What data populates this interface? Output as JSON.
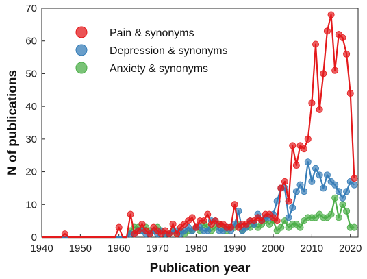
{
  "chart_data": {
    "type": "line",
    "xlabel": "Publication year",
    "ylabel": "N of publications",
    "xlim": [
      1940,
      2022
    ],
    "ylim": [
      0,
      70
    ],
    "xticks": [
      1940,
      1950,
      1960,
      1970,
      1980,
      1990,
      2000,
      2010,
      2020
    ],
    "yticks": [
      0,
      10,
      20,
      30,
      40,
      50,
      60,
      70
    ],
    "grid": false,
    "legend_position": "top-left",
    "x": [
      1940,
      1941,
      1942,
      1943,
      1944,
      1945,
      1946,
      1947,
      1948,
      1949,
      1950,
      1951,
      1952,
      1953,
      1954,
      1955,
      1956,
      1957,
      1958,
      1959,
      1960,
      1961,
      1962,
      1963,
      1964,
      1965,
      1966,
      1967,
      1968,
      1969,
      1970,
      1971,
      1972,
      1973,
      1974,
      1975,
      1976,
      1977,
      1978,
      1979,
      1980,
      1981,
      1982,
      1983,
      1984,
      1985,
      1986,
      1987,
      1988,
      1989,
      1990,
      1991,
      1992,
      1993,
      1994,
      1995,
      1996,
      1997,
      1998,
      1999,
      2000,
      2001,
      2002,
      2003,
      2004,
      2005,
      2006,
      2007,
      2008,
      2009,
      2010,
      2011,
      2012,
      2013,
      2014,
      2015,
      2016,
      2017,
      2018,
      2019,
      2020,
      2021
    ],
    "series": [
      {
        "name": "Pain & synonyms",
        "color": "#e41a1c",
        "values": [
          0,
          0,
          0,
          0,
          0,
          0,
          1,
          0,
          0,
          0,
          0,
          0,
          0,
          0,
          0,
          0,
          0,
          0,
          0,
          0,
          3,
          0,
          0,
          7,
          1,
          2,
          4,
          2,
          1,
          3,
          2,
          1,
          2,
          1,
          4,
          1,
          3,
          4,
          5,
          6,
          3,
          5,
          5,
          7,
          4,
          5,
          4,
          4,
          3,
          3,
          10,
          3,
          4,
          4,
          5,
          5,
          6,
          5,
          7,
          7,
          6,
          5,
          15,
          17,
          11,
          28,
          22,
          28,
          27,
          30,
          41,
          59,
          39,
          50,
          63,
          68,
          51,
          62,
          61,
          56,
          44,
          18
        ]
      },
      {
        "name": "Depression & synonyms",
        "color": "#377eb8",
        "values": [
          0,
          0,
          0,
          0,
          0,
          0,
          0,
          0,
          0,
          0,
          0,
          0,
          0,
          0,
          0,
          0,
          0,
          0,
          0,
          0,
          0,
          0,
          0,
          1,
          1,
          2,
          2,
          1,
          1,
          2,
          1,
          2,
          1,
          1,
          2,
          2,
          1,
          2,
          3,
          2,
          3,
          3,
          2,
          2,
          5,
          5,
          2,
          2,
          3,
          2,
          4,
          8,
          2,
          3,
          5,
          4,
          7,
          5,
          6,
          6,
          7,
          11,
          15,
          15,
          6,
          9,
          14,
          16,
          14,
          23,
          17,
          21,
          19,
          15,
          19,
          17,
          16,
          14,
          12,
          14,
          17,
          16
        ]
      },
      {
        "name": "Anxiety & synonyms",
        "color": "#4daf4a",
        "values": [
          0,
          0,
          0,
          0,
          0,
          0,
          0,
          0,
          0,
          0,
          0,
          0,
          0,
          0,
          0,
          0,
          0,
          0,
          0,
          0,
          0,
          0,
          0,
          2,
          3,
          3,
          2,
          3,
          2,
          2,
          3,
          2,
          1,
          1,
          2,
          1,
          2,
          1,
          2,
          2,
          3,
          2,
          4,
          3,
          2,
          3,
          4,
          3,
          2,
          3,
          3,
          4,
          2,
          3,
          3,
          4,
          3,
          4,
          5,
          4,
          5,
          2,
          3,
          5,
          3,
          4,
          4,
          3,
          5,
          6,
          6,
          6,
          7,
          6,
          6,
          7,
          12,
          6,
          10,
          8,
          3,
          3
        ]
      }
    ]
  }
}
